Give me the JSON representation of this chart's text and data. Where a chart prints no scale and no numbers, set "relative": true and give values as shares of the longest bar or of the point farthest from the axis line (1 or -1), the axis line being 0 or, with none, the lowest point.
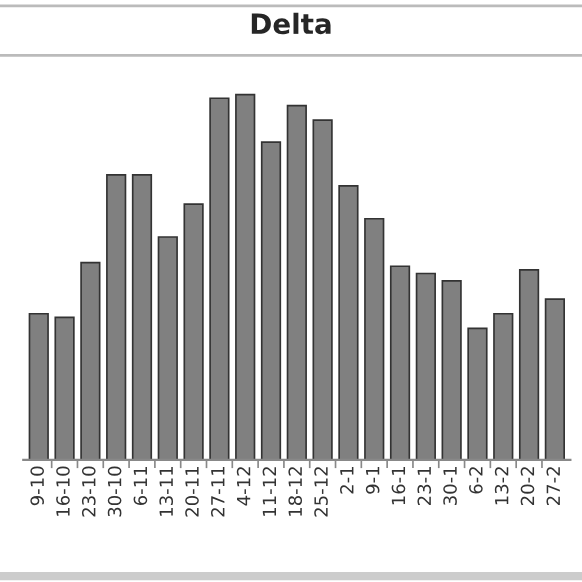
{
  "chart_data": {
    "type": "bar",
    "title": "Delta",
    "relative": true,
    "categories": [
      "9-10",
      "16-10",
      "23-10",
      "30-10",
      "6-11",
      "13-11",
      "20-11",
      "27-11",
      "4-12",
      "11-12",
      "18-12",
      "25-12",
      "2-1",
      "9-1",
      "16-1",
      "23-1",
      "30-1",
      "6-2",
      "13-2",
      "20-2",
      "27-2"
    ],
    "values": [
      0.4,
      0.39,
      0.54,
      0.78,
      0.78,
      0.61,
      0.7,
      0.99,
      1,
      0.87,
      0.97,
      0.93,
      0.75,
      0.66,
      0.53,
      0.51,
      0.49,
      0.36,
      0.4,
      0.52,
      0.44
    ],
    "color": "#808080",
    "grid": false,
    "legend": false
  }
}
